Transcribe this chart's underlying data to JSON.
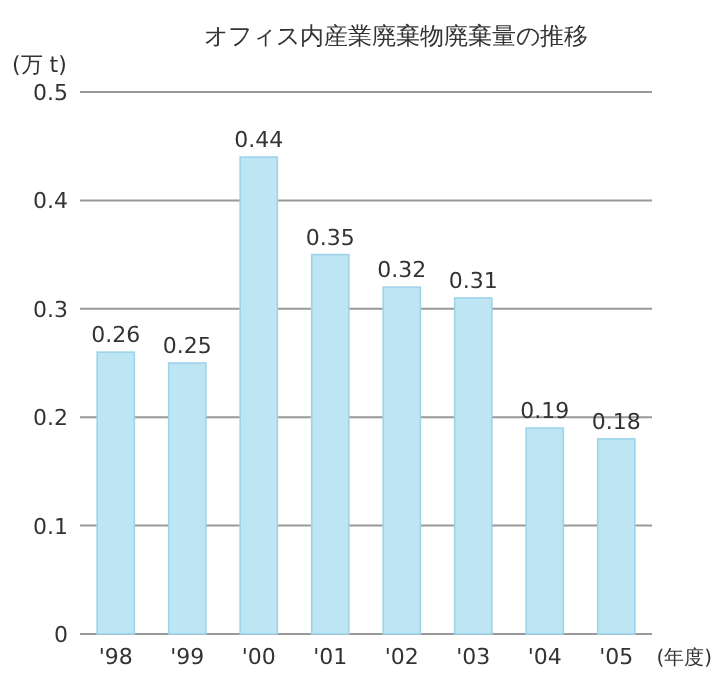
{
  "chart_data": {
    "type": "bar",
    "title": "オフィス内産業廃棄物廃棄量の推移",
    "ylabel": "(万 t)",
    "xlabel": "(年度)",
    "categories": [
      "'98",
      "'99",
      "'00",
      "'01",
      "'02",
      "'03",
      "'04",
      "'05"
    ],
    "values": [
      0.26,
      0.25,
      0.44,
      0.35,
      0.32,
      0.31,
      0.19,
      0.18
    ],
    "color": "#bde5f4",
    "ylim": [
      0,
      0.5
    ],
    "yticks": [
      0,
      0.1,
      0.2,
      0.3,
      0.4,
      0.5
    ],
    "grid": "y",
    "data_labels": true
  }
}
